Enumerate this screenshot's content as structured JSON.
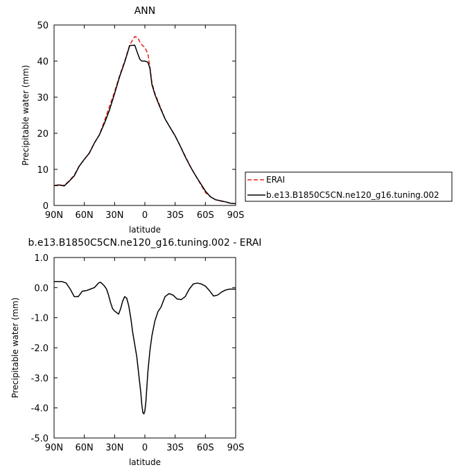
{
  "chart_data": [
    {
      "type": "line",
      "title": "ANN",
      "xlabel": "latitude",
      "ylabel": "Precipitable water  (mm)",
      "xlim": [
        90,
        -90
      ],
      "ylim": [
        0,
        50
      ],
      "x_tick_values": [
        90,
        60,
        30,
        0,
        -30,
        -60,
        -90
      ],
      "x_tick_labels": [
        "90N",
        "60N",
        "30N",
        "0",
        "30S",
        "60S",
        "90S"
      ],
      "y_tick_values": [
        0,
        10,
        20,
        30,
        40,
        50
      ],
      "y_tick_labels": [
        "0",
        "10",
        "20",
        "30",
        "40",
        "50"
      ],
      "legend_position": "right",
      "series": [
        {
          "name": "ERAI",
          "color": "#e8231a",
          "dash": "dashed",
          "x": [
            90,
            85,
            80,
            75,
            70,
            65,
            60,
            55,
            50,
            45,
            40,
            35,
            30,
            25,
            20,
            15,
            10,
            7,
            5,
            3,
            0,
            -3,
            -5,
            -7,
            -10,
            -15,
            -20,
            -25,
            -30,
            -35,
            -40,
            -45,
            -50,
            -55,
            -60,
            -65,
            -70,
            -75,
            -80,
            -85,
            -90
          ],
          "y": [
            5.5,
            5.5,
            5.6,
            6.8,
            8.4,
            11,
            12.7,
            14.6,
            17.4,
            19.6,
            23.5,
            27.5,
            31.5,
            36,
            40,
            44.5,
            46.8,
            46.5,
            45.3,
            44.5,
            43.8,
            42,
            38.5,
            34,
            31,
            27.5,
            24,
            21.6,
            19.3,
            16.5,
            13.7,
            10.9,
            8.4,
            6,
            3.6,
            2.4,
            1.6,
            1.2,
            1.0,
            0.6,
            0.5
          ]
        },
        {
          "name": "b.e13.B1850C5CN.ne120_g16.tuning.002",
          "color": "#000000",
          "dash": "solid",
          "x": [
            90,
            85,
            80,
            75,
            70,
            65,
            60,
            55,
            50,
            45,
            40,
            35,
            30,
            25,
            20,
            15,
            10,
            7,
            5,
            3,
            0,
            -3,
            -5,
            -7,
            -10,
            -15,
            -20,
            -25,
            -30,
            -35,
            -40,
            -45,
            -50,
            -55,
            -60,
            -65,
            -70,
            -75,
            -80,
            -85,
            -90
          ],
          "y": [
            5.5,
            5.7,
            5.4,
            6.7,
            8.2,
            10.9,
            12.8,
            14.5,
            17.3,
            19.6,
            22.8,
            26.5,
            31,
            35.7,
            39.7,
            44.3,
            44.4,
            42,
            40.5,
            40,
            40,
            39.7,
            38,
            33.5,
            30.7,
            27.2,
            24,
            21.6,
            19.3,
            16.5,
            13.5,
            10.8,
            8.4,
            6.2,
            4.0,
            2.4,
            1.6,
            1.3,
            1.0,
            0.6,
            0.5
          ]
        }
      ]
    },
    {
      "type": "line",
      "title": "b.e13.B1850C5CN.ne120_g16.tuning.002 - ERAI",
      "xlabel": "latitude",
      "ylabel": "Precipitable water  (mm)",
      "xlim": [
        90,
        -90
      ],
      "ylim": [
        -5.0,
        1.0
      ],
      "x_tick_values": [
        90,
        60,
        30,
        0,
        -30,
        -60,
        -90
      ],
      "x_tick_labels": [
        "90N",
        "60N",
        "30N",
        "0",
        "30S",
        "60S",
        "90S"
      ],
      "y_tick_values": [
        1,
        0,
        -1,
        -2,
        -3,
        -4,
        -5
      ],
      "y_tick_labels": [
        "1.0",
        "0.0",
        "-1.0",
        "-2.0",
        "-3.0",
        "-4.0",
        "-5.0"
      ],
      "series": [
        {
          "color": "#000000",
          "x": [
            90,
            85,
            82,
            78,
            74,
            70,
            66,
            62,
            58,
            54,
            50,
            46,
            44,
            42,
            40,
            38,
            36,
            34,
            32,
            30,
            28,
            26,
            24,
            22,
            20,
            18,
            16,
            14,
            12,
            10,
            8,
            6,
            4,
            3,
            2,
            1,
            0,
            -1,
            -2,
            -3,
            -5,
            -7,
            -10,
            -13,
            -16,
            -20,
            -24,
            -28,
            -32,
            -36,
            -40,
            -44,
            -48,
            -52,
            -56,
            -60,
            -64,
            -68,
            -72,
            -76,
            -80,
            -84,
            -88,
            -90
          ],
          "y": [
            0.2,
            0.2,
            0.2,
            0.15,
            -0.05,
            -0.3,
            -0.3,
            -0.12,
            -0.1,
            -0.05,
            0.0,
            0.15,
            0.18,
            0.12,
            0.05,
            -0.05,
            -0.25,
            -0.5,
            -0.7,
            -0.78,
            -0.83,
            -0.88,
            -0.7,
            -0.45,
            -0.3,
            -0.35,
            -0.6,
            -1.0,
            -1.5,
            -1.9,
            -2.3,
            -2.9,
            -3.5,
            -3.9,
            -4.15,
            -4.2,
            -4.1,
            -3.8,
            -3.3,
            -2.8,
            -2.1,
            -1.6,
            -1.1,
            -0.8,
            -0.65,
            -0.3,
            -0.2,
            -0.25,
            -0.38,
            -0.4,
            -0.3,
            -0.05,
            0.12,
            0.15,
            0.12,
            0.05,
            -0.1,
            -0.28,
            -0.25,
            -0.15,
            -0.08,
            -0.05,
            -0.05,
            -0.05
          ]
        }
      ]
    }
  ]
}
